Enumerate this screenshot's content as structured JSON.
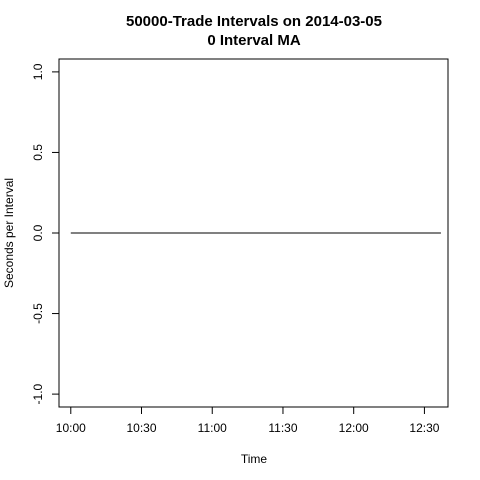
{
  "chart_data": {
    "type": "line",
    "title": "50000-Trade Intervals on 2014-03-05",
    "subtitle": "0 Interval MA",
    "xlabel": "Time",
    "ylabel": "Seconds per Interval",
    "x_ticks": [
      "10:00",
      "10:30",
      "11:00",
      "11:30",
      "12:00",
      "12:30"
    ],
    "y_ticks": [
      "-1.0",
      "-0.5",
      "0.0",
      "0.5",
      "1.0"
    ],
    "y_tick_values": [
      -1.0,
      -0.5,
      0.0,
      0.5,
      1.0
    ],
    "xlim": [
      "09:55",
      "12:40"
    ],
    "ylim": [
      -1.08,
      1.08
    ],
    "grid": false,
    "series": [
      {
        "x": [
          "10:00",
          "12:37"
        ],
        "y": [
          0,
          0
        ]
      }
    ]
  }
}
